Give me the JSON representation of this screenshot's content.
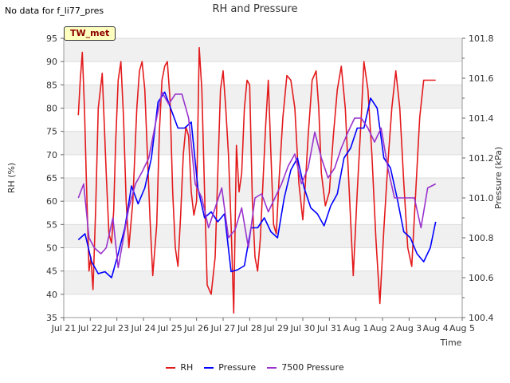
{
  "header": {
    "nodata_text": "No data for f_li77_pres",
    "site_label": "TW_met"
  },
  "chart_data": {
    "type": "line",
    "title": "RH and Pressure",
    "xlabel": "Time",
    "ylabel_left": "RH (%)",
    "ylabel_right": "Pressure (kPa)",
    "x_tick_labels": [
      "Jul 21",
      "Jul 22",
      "Jul 23",
      "Jul 24",
      "Jul 25",
      "Jul 26",
      "Jul 27",
      "Jul 28",
      "Jul 29",
      "Jul 30",
      "Jul 31",
      "Aug 1",
      "Aug 2",
      "Aug 3",
      "Aug 4",
      "Aug 5"
    ],
    "x_range_days": [
      0,
      15
    ],
    "y_left_range": [
      35,
      95
    ],
    "y_left_ticks": [
      35,
      40,
      45,
      50,
      55,
      60,
      65,
      70,
      75,
      80,
      85,
      90,
      95
    ],
    "y_right_range": [
      100.4,
      101.8
    ],
    "y_right_ticks": [
      100.4,
      100.6,
      100.8,
      101.0,
      101.2,
      101.4,
      101.6,
      101.8
    ],
    "grid": true,
    "legend_position": "bottom",
    "series": [
      {
        "name": "RH",
        "axis": "left",
        "color": "#e31a1c",
        "x": [
          0.55,
          0.62,
          0.7,
          0.78,
          0.85,
          0.95,
          1.02,
          1.1,
          1.2,
          1.3,
          1.45,
          1.6,
          1.7,
          1.8,
          1.88,
          1.95,
          2.05,
          2.15,
          2.25,
          2.35,
          2.45,
          2.6,
          2.75,
          2.85,
          2.95,
          3.05,
          3.15,
          3.25,
          3.35,
          3.5,
          3.6,
          3.7,
          3.8,
          3.9,
          4.0,
          4.1,
          4.2,
          4.3,
          4.4,
          4.5,
          4.6,
          4.7,
          4.8,
          4.9,
          5.0,
          5.1,
          5.2,
          5.3,
          5.4,
          5.55,
          5.7,
          5.8,
          5.9,
          6.0,
          6.1,
          6.2,
          6.3,
          6.4,
          6.5,
          6.6,
          6.7,
          6.8,
          6.9,
          7.0,
          7.1,
          7.2,
          7.3,
          7.4,
          7.5,
          7.6,
          7.7,
          7.8,
          7.9,
          8.0,
          8.1,
          8.25,
          8.4,
          8.55,
          8.7,
          8.85,
          9.0,
          9.1,
          9.2,
          9.35,
          9.5,
          9.6,
          9.7,
          9.85,
          10.0,
          10.15,
          10.3,
          10.45,
          10.6,
          10.75,
          10.9,
          11.05,
          11.2,
          11.3,
          11.45,
          11.6,
          11.75,
          11.9,
          12.05,
          12.2,
          12.35,
          12.5,
          12.65,
          12.8,
          12.95,
          13.1,
          13.25,
          13.4,
          13.55,
          13.7,
          13.85,
          14.0
        ],
        "values": [
          78.5,
          86,
          92,
          80,
          65,
          45,
          48,
          41,
          58,
          80,
          87.5,
          66,
          53,
          51,
          58,
          72,
          86,
          90,
          78,
          60,
          50,
          60,
          80,
          88,
          90,
          84,
          70,
          56,
          44,
          55,
          75,
          86,
          89,
          90,
          82,
          62,
          50,
          46,
          57,
          70,
          76,
          74,
          62,
          57,
          60,
          93,
          84,
          62,
          42,
          40,
          48,
          66,
          84,
          88,
          80,
          70,
          55,
          36,
          72,
          62,
          66,
          80,
          86,
          85,
          60,
          48,
          45,
          52,
          64,
          76,
          86,
          70,
          55,
          53,
          64,
          78,
          87,
          86,
          80,
          64,
          56,
          64,
          74,
          86,
          88,
          80,
          66,
          59,
          62,
          74,
          84,
          89,
          80,
          62,
          44,
          62,
          78,
          90,
          84,
          70,
          52,
          38,
          54,
          68,
          80,
          88,
          80,
          64,
          50,
          46,
          62,
          78,
          86,
          86,
          86,
          86
        ],
        "spread": 0
      },
      {
        "name": "Pressure",
        "axis": "right",
        "color": "#0000ff",
        "x": [
          0.55,
          0.8,
          1.05,
          1.3,
          1.55,
          1.8,
          2.05,
          2.3,
          2.55,
          2.8,
          3.05,
          3.3,
          3.55,
          3.8,
          4.05,
          4.3,
          4.55,
          4.8,
          5.05,
          5.3,
          5.55,
          5.8,
          6.05,
          6.3,
          6.55,
          6.8,
          7.05,
          7.3,
          7.55,
          7.8,
          8.05,
          8.3,
          8.55,
          8.8,
          9.05,
          9.3,
          9.55,
          9.8,
          10.05,
          10.3,
          10.55,
          10.8,
          11.05,
          11.3,
          11.55,
          11.8,
          12.05,
          12.3,
          12.55,
          12.8,
          13.05,
          13.3,
          13.55,
          13.8,
          14.0
        ],
        "values": [
          100.79,
          100.82,
          100.68,
          100.62,
          100.63,
          100.6,
          100.72,
          100.85,
          101.06,
          100.97,
          101.05,
          101.2,
          101.48,
          101.53,
          101.44,
          101.35,
          101.35,
          101.38,
          101.05,
          100.9,
          100.93,
          100.88,
          100.92,
          100.63,
          100.64,
          100.66,
          100.85,
          100.85,
          100.9,
          100.83,
          100.8,
          101.0,
          101.14,
          101.2,
          101.05,
          100.95,
          100.92,
          100.86,
          100.96,
          101.02,
          101.2,
          101.25,
          101.35,
          101.35,
          101.5,
          101.45,
          101.2,
          101.15,
          101.0,
          100.83,
          100.8,
          100.72,
          100.68,
          100.75,
          100.88
        ],
        "spread": 0
      },
      {
        "name": "7500 Pressure",
        "axis": "right",
        "color": "#9933cc",
        "x": [
          0.55,
          0.75,
          0.95,
          1.15,
          1.4,
          1.6,
          1.85,
          2.05,
          2.25,
          2.45,
          2.7,
          2.95,
          3.2,
          3.45,
          3.7,
          3.95,
          4.2,
          4.45,
          4.7,
          4.95,
          5.2,
          5.45,
          5.7,
          5.95,
          6.2,
          6.45,
          6.7,
          6.95,
          7.2,
          7.45,
          7.7,
          7.95,
          8.2,
          8.45,
          8.7,
          8.95,
          9.2,
          9.45,
          9.7,
          9.95,
          10.2,
          10.45,
          10.7,
          10.95,
          11.2,
          11.45,
          11.7,
          11.95,
          12.2,
          12.45,
          12.7,
          12.95,
          13.2,
          13.45,
          13.7,
          14.0
        ],
        "values": [
          101.0,
          101.07,
          100.8,
          100.75,
          100.72,
          100.75,
          100.9,
          100.65,
          100.8,
          100.95,
          101.07,
          101.13,
          101.2,
          101.37,
          101.53,
          101.47,
          101.52,
          101.52,
          101.4,
          101.07,
          101.0,
          100.85,
          100.95,
          101.05,
          100.8,
          100.84,
          100.95,
          100.75,
          101.0,
          101.02,
          100.93,
          101.0,
          101.07,
          101.16,
          101.22,
          101.07,
          101.15,
          101.33,
          101.2,
          101.1,
          101.15,
          101.25,
          101.33,
          101.4,
          101.4,
          101.35,
          101.28,
          101.35,
          101.15,
          101.0,
          101.0,
          101.0,
          101.0,
          100.85,
          101.05,
          101.07
        ],
        "spread": 0
      }
    ]
  }
}
